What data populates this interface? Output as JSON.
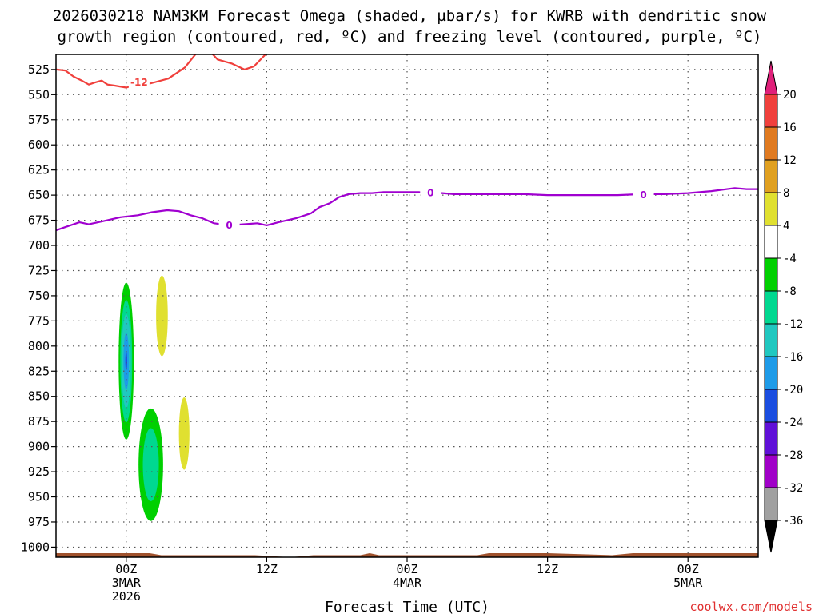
{
  "title": {
    "line1": "2026030218 NAM3KM Forecast Omega (shaded, µbar/s) for KWRB with dendritic snow",
    "line2": "growth region (contoured, red, ºC) and freezing level (contoured, purple, ºC)"
  },
  "credit": "coolwx.com/models",
  "chart_data": {
    "type": "contour",
    "xlabel": "Forecast Time (UTC)",
    "ylabel": "",
    "x_units": "hours since 2026-03-02 18Z",
    "xlim": [
      0,
      60
    ],
    "ylim": [
      510,
      1010
    ],
    "y_reversed": true,
    "yticks": [
      525,
      550,
      575,
      600,
      625,
      650,
      675,
      700,
      725,
      750,
      775,
      800,
      825,
      850,
      875,
      900,
      925,
      950,
      975,
      1000
    ],
    "xticks": [
      {
        "x": 6,
        "lines": [
          "00Z",
          "3MAR",
          "2026"
        ]
      },
      {
        "x": 18,
        "lines": [
          "12Z"
        ]
      },
      {
        "x": 30,
        "lines": [
          "00Z",
          "4MAR"
        ]
      },
      {
        "x": 42,
        "lines": [
          "12Z"
        ]
      },
      {
        "x": 54,
        "lines": [
          "00Z",
          "5MAR"
        ]
      }
    ],
    "grid": true,
    "contours": [
      {
        "name": "dendritic snow growth -12C",
        "color": "#f0403c",
        "label": "-12",
        "label_points": [
          {
            "x": 7.1,
            "y": 538
          }
        ],
        "points": [
          [
            0,
            525
          ],
          [
            0.8,
            526
          ],
          [
            1.5,
            532
          ],
          [
            2.2,
            536
          ],
          [
            2.8,
            540
          ],
          [
            3.3,
            538
          ],
          [
            3.9,
            536
          ],
          [
            4.4,
            540
          ],
          [
            5.0,
            541
          ],
          [
            6.0,
            543
          ],
          [
            6.6,
            541
          ],
          [
            8.0,
            539
          ],
          [
            9.6,
            534
          ],
          [
            11.0,
            523
          ],
          [
            12.6,
            500
          ],
          [
            13.8,
            515
          ],
          [
            15.0,
            519
          ],
          [
            16.1,
            525
          ],
          [
            16.9,
            522
          ],
          [
            17.9,
            510
          ],
          [
            19.0,
            503
          ],
          [
            20.0,
            497
          ]
        ]
      },
      {
        "name": "freezing level 0C",
        "color": "#a000d0",
        "label": "0",
        "label_points": [
          {
            "x": 14.8,
            "y": 680
          },
          {
            "x": 32.0,
            "y": 648
          },
          {
            "x": 50.2,
            "y": 650
          }
        ],
        "points": [
          [
            0,
            685
          ],
          [
            1.0,
            681
          ],
          [
            2.0,
            677
          ],
          [
            2.8,
            679
          ],
          [
            4.0,
            676
          ],
          [
            5.5,
            672
          ],
          [
            7.0,
            670
          ],
          [
            8.2,
            667
          ],
          [
            9.5,
            665
          ],
          [
            10.5,
            666
          ],
          [
            11.5,
            670
          ],
          [
            12.5,
            673
          ],
          [
            13.5,
            678
          ],
          [
            14.8,
            680
          ],
          [
            16.0,
            679
          ],
          [
            17.2,
            678
          ],
          [
            18.0,
            680
          ],
          [
            19.0,
            677
          ],
          [
            20.5,
            673
          ],
          [
            21.8,
            668
          ],
          [
            22.5,
            662
          ],
          [
            23.4,
            658
          ],
          [
            24.2,
            652
          ],
          [
            25.0,
            649
          ],
          [
            26.0,
            648
          ],
          [
            27.0,
            648
          ],
          [
            28.0,
            647
          ],
          [
            29.0,
            647
          ],
          [
            30.0,
            647
          ],
          [
            31.0,
            647
          ],
          [
            32.0,
            648
          ],
          [
            33.0,
            648
          ],
          [
            34.0,
            649
          ],
          [
            35.0,
            649
          ],
          [
            36.0,
            649
          ],
          [
            38.0,
            649
          ],
          [
            40.0,
            649
          ],
          [
            42.0,
            650
          ],
          [
            44.0,
            650
          ],
          [
            46.0,
            650
          ],
          [
            48.0,
            650
          ],
          [
            50.0,
            649
          ],
          [
            52.0,
            649
          ],
          [
            54.0,
            648
          ],
          [
            56.0,
            646
          ],
          [
            58.0,
            643
          ],
          [
            59.0,
            644
          ],
          [
            60,
            644
          ]
        ]
      }
    ],
    "omega_shading": [
      {
        "name": "upward cell A",
        "x": 6.0,
        "y": 815,
        "rx": 0.65,
        "ry": 78,
        "levels": [
          {
            "value": -4,
            "color": "#00d000",
            "scale": 1.0
          },
          {
            "value": -8,
            "color": "#00d890",
            "scale": 0.78
          },
          {
            "value": -12,
            "color": "#20c8c0",
            "scale": 0.6
          },
          {
            "value": -16,
            "color": "#1e9be8",
            "scale": 0.36
          },
          {
            "value": -20,
            "color": "#1a4de0",
            "scale": 0.12
          }
        ]
      },
      {
        "name": "upward cell B",
        "x": 8.1,
        "y": 918,
        "rx": 1.05,
        "ry": 56,
        "levels": [
          {
            "value": -4,
            "color": "#00d000",
            "scale": 1.0
          },
          {
            "value": -8,
            "color": "#00d890",
            "scale": 0.65
          }
        ]
      },
      {
        "name": "downward cell C",
        "x": 9.05,
        "y": 770,
        "rx": 0.5,
        "ry": 40,
        "levels": [
          {
            "value": 4,
            "color": "#e0e030",
            "scale": 1.0
          }
        ]
      },
      {
        "name": "downward cell D",
        "x": 10.95,
        "y": 887,
        "rx": 0.45,
        "ry": 36,
        "levels": [
          {
            "value": 4,
            "color": "#e0e030",
            "scale": 1.0
          }
        ]
      }
    ],
    "terrain_color": "#a0522d",
    "terrain": [
      [
        0,
        1006
      ],
      [
        4,
        1006
      ],
      [
        8,
        1006
      ],
      [
        9,
        1008
      ],
      [
        12,
        1008
      ],
      [
        17,
        1008
      ],
      [
        20,
        1010
      ],
      [
        22,
        1008
      ],
      [
        26,
        1008
      ],
      [
        26.8,
        1006
      ],
      [
        27.6,
        1008
      ],
      [
        30,
        1008
      ],
      [
        36,
        1008
      ],
      [
        37,
        1006
      ],
      [
        42,
        1006
      ],
      [
        47.5,
        1008
      ],
      [
        49.3,
        1006
      ],
      [
        60,
        1006
      ]
    ],
    "colorbar": {
      "levels": [
        -36,
        -32,
        -28,
        -24,
        -20,
        -16,
        -12,
        -8,
        -4,
        4,
        8,
        12,
        16,
        20
      ],
      "colors": [
        "#000000",
        "#a0a0a0",
        "#a000c8",
        "#6010d8",
        "#1a4de0",
        "#1e9be8",
        "#20c8c0",
        "#00d890",
        "#00d000",
        "#ffffff",
        "#e0e030",
        "#e0a020",
        "#e07a20",
        "#f0403c",
        "#e0207a"
      ]
    }
  }
}
